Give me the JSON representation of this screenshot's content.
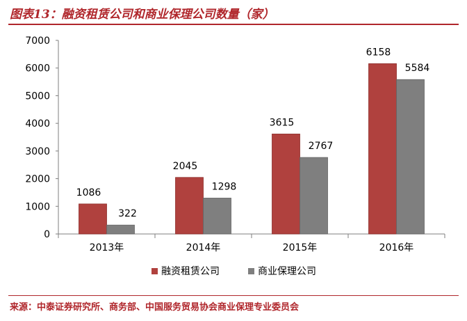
{
  "page": {
    "title": "图表13：融资租赁公司和商业保理公司数量（家）",
    "source": "来源：中泰证券研究所、商务部、中国服务贸易协会商业保理专业委员会"
  },
  "colors": {
    "accent": "#b0262b",
    "series_1": "#b0413e",
    "series_2": "#7f7f7f",
    "axis": "#7f7f7f"
  },
  "chart_data": {
    "type": "bar",
    "categories": [
      "2013年",
      "2014年",
      "2015年",
      "2016年"
    ],
    "series": [
      {
        "name": "融资租赁公司",
        "values": [
          1086,
          2045,
          3615,
          6158
        ]
      },
      {
        "name": "商业保理公司",
        "values": [
          322,
          1298,
          2767,
          5584
        ]
      }
    ],
    "ylim": [
      0,
      7000
    ],
    "yticks": [
      0,
      1000,
      2000,
      3000,
      4000,
      5000,
      6000,
      7000
    ],
    "grid": false,
    "legend": "bottom-center",
    "data_labels": true
  }
}
